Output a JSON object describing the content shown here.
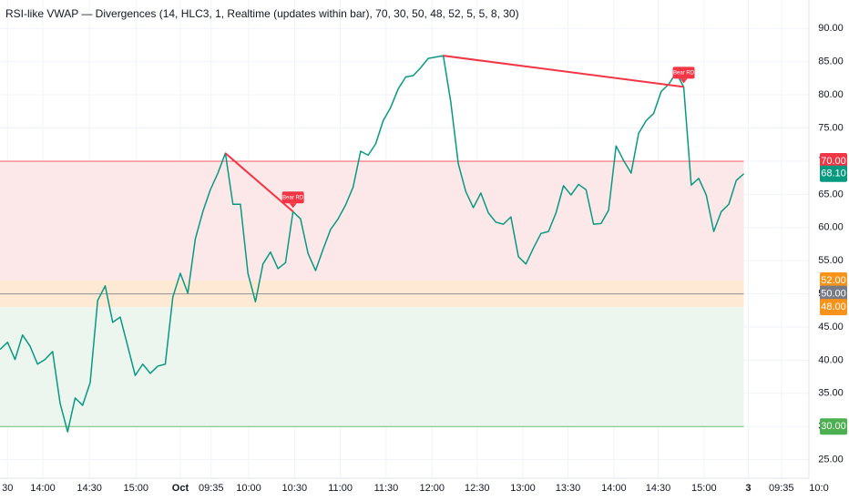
{
  "chart_data": {
    "type": "line",
    "title": "RSI-like VWAP — Divergences (14, HLC3, 1, Realtime (updates within bar), 70, 30, 50, 48, 52, 5, 5, 8, 30)",
    "x": [
      0,
      1,
      2,
      3,
      4,
      5,
      6,
      7,
      8,
      9,
      10,
      11,
      12,
      13,
      14,
      15,
      16,
      17,
      18,
      19,
      20,
      21,
      22,
      23,
      24,
      25,
      26,
      27,
      28,
      29,
      30,
      31,
      32,
      33,
      34,
      35,
      36,
      37,
      38,
      39,
      40,
      41,
      42,
      43,
      44,
      45,
      46,
      47,
      48,
      49,
      50,
      51,
      52,
      53,
      54,
      55,
      56,
      57,
      58,
      59,
      60,
      61,
      62,
      63,
      64,
      65,
      66,
      67,
      68,
      69,
      70,
      71,
      72,
      73,
      74,
      75,
      76,
      77,
      78,
      79,
      80,
      81,
      82,
      83,
      84,
      85,
      86,
      87,
      88,
      89,
      90,
      91,
      92,
      93,
      94,
      95,
      96,
      97,
      98,
      99
    ],
    "series": [
      {
        "color": "#089981",
        "last_value_label": "68.10",
        "values": [
          41.6,
          42.7,
          40.1,
          43.8,
          42.1,
          39.4,
          40.1,
          41.3,
          33.5,
          29.2,
          34.3,
          33.2,
          36.6,
          49.0,
          51.2,
          45.7,
          46.5,
          42.1,
          37.7,
          39.4,
          38.0,
          39.1,
          39.4,
          49.5,
          53.1,
          50.1,
          58.3,
          62.4,
          65.7,
          68.2,
          71.2,
          63.5,
          63.5,
          53.1,
          48.8,
          54.5,
          56.3,
          53.8,
          54.7,
          62.4,
          61.3,
          56.1,
          53.5,
          56.7,
          59.7,
          61.3,
          63.4,
          66.1,
          71.5,
          70.9,
          72.6,
          76.1,
          78.1,
          80.9,
          82.7,
          82.9,
          84.1,
          85.5,
          85.7,
          85.9,
          78.9,
          69.6,
          65.4,
          63.0,
          65.2,
          62.2,
          60.8,
          60.5,
          61.6,
          55.6,
          54.5,
          56.9,
          59.1,
          59.4,
          62.2,
          66.3,
          64.9,
          66.5,
          65.7,
          60.5,
          60.6,
          62.6,
          72.3,
          70.1,
          68.2,
          74.2,
          76.1,
          77.2,
          80.5,
          81.6,
          83.3,
          81.2,
          66.4,
          67.4,
          64.9,
          59.4,
          62.4,
          63.5,
          67.1,
          68.1
        ]
      }
    ],
    "xlim": [
      0,
      113
    ],
    "ylim": [
      22.2,
      94.3
    ],
    "xticks": [
      {
        "value": 1,
        "label": "30",
        "bold": false
      },
      {
        "value": 5.7,
        "label": "14:00",
        "bold": false
      },
      {
        "value": 11.9,
        "label": "14:30",
        "bold": false
      },
      {
        "value": 18.1,
        "label": "15:00",
        "bold": false
      },
      {
        "value": 24,
        "label": "Oct",
        "bold": true
      },
      {
        "value": 28.1,
        "label": "09:35",
        "bold": false
      },
      {
        "value": 33.1,
        "label": "10:00",
        "bold": false
      },
      {
        "value": 39.2,
        "label": "10:30",
        "bold": false
      },
      {
        "value": 45.3,
        "label": "11:00",
        "bold": false
      },
      {
        "value": 51.4,
        "label": "11:30",
        "bold": false
      },
      {
        "value": 57.5,
        "label": "12:00",
        "bold": false
      },
      {
        "value": 63.5,
        "label": "12:30",
        "bold": false
      },
      {
        "value": 69.6,
        "label": "13:00",
        "bold": false
      },
      {
        "value": 75.6,
        "label": "13:30",
        "bold": false
      },
      {
        "value": 81.7,
        "label": "14:00",
        "bold": false
      },
      {
        "value": 87.6,
        "label": "14:30",
        "bold": false
      },
      {
        "value": 93.7,
        "label": "15:00",
        "bold": false
      },
      {
        "value": 99.6,
        "label": "3",
        "bold": true
      },
      {
        "value": 104,
        "label": "09:35",
        "bold": false
      },
      {
        "value": 109,
        "label": "10:0",
        "bold": false
      }
    ],
    "yticks": [
      {
        "value": 25,
        "label": "25.00"
      },
      {
        "value": 30,
        "label": "30.00"
      },
      {
        "value": 35,
        "label": "35.00"
      },
      {
        "value": 40,
        "label": "40.00"
      },
      {
        "value": 45,
        "label": "45.00"
      },
      {
        "value": 50,
        "label": "50.00"
      },
      {
        "value": 55,
        "label": "55.00"
      },
      {
        "value": 60,
        "label": "60.00"
      },
      {
        "value": 65,
        "label": "65.00"
      },
      {
        "value": 70,
        "label": "70.00"
      },
      {
        "value": 75,
        "label": "75.00"
      },
      {
        "value": 80,
        "label": "80.00"
      },
      {
        "value": 85,
        "label": "85.00"
      },
      {
        "value": 90,
        "label": "90.00"
      }
    ],
    "grid": true,
    "zones": [
      {
        "from": 52,
        "to": 70,
        "color": "#fde8e9"
      },
      {
        "from": 48,
        "to": 52,
        "color": "#fde9d4"
      },
      {
        "from": 30,
        "to": 48,
        "color": "#edf6ee"
      }
    ],
    "levels": [
      {
        "value": 70,
        "label": "70.00",
        "color": "#f23645",
        "line": true
      },
      {
        "value": 52,
        "label": "52.00",
        "color": "#f7931a",
        "line": false
      },
      {
        "value": 50,
        "label": "50.00",
        "color": "#787b86",
        "line": true
      },
      {
        "value": 48,
        "label": "48.00",
        "color": "#f7931a",
        "line": false
      },
      {
        "value": 30,
        "label": "30.00",
        "color": "#4caf50",
        "line": true
      }
    ],
    "divergences": [
      {
        "label": "Bear RD",
        "start": 30,
        "end": 39,
        "color": "#f23645"
      },
      {
        "label": "Bear RD",
        "start": 59,
        "end": 91,
        "color": "#f23645"
      }
    ]
  }
}
